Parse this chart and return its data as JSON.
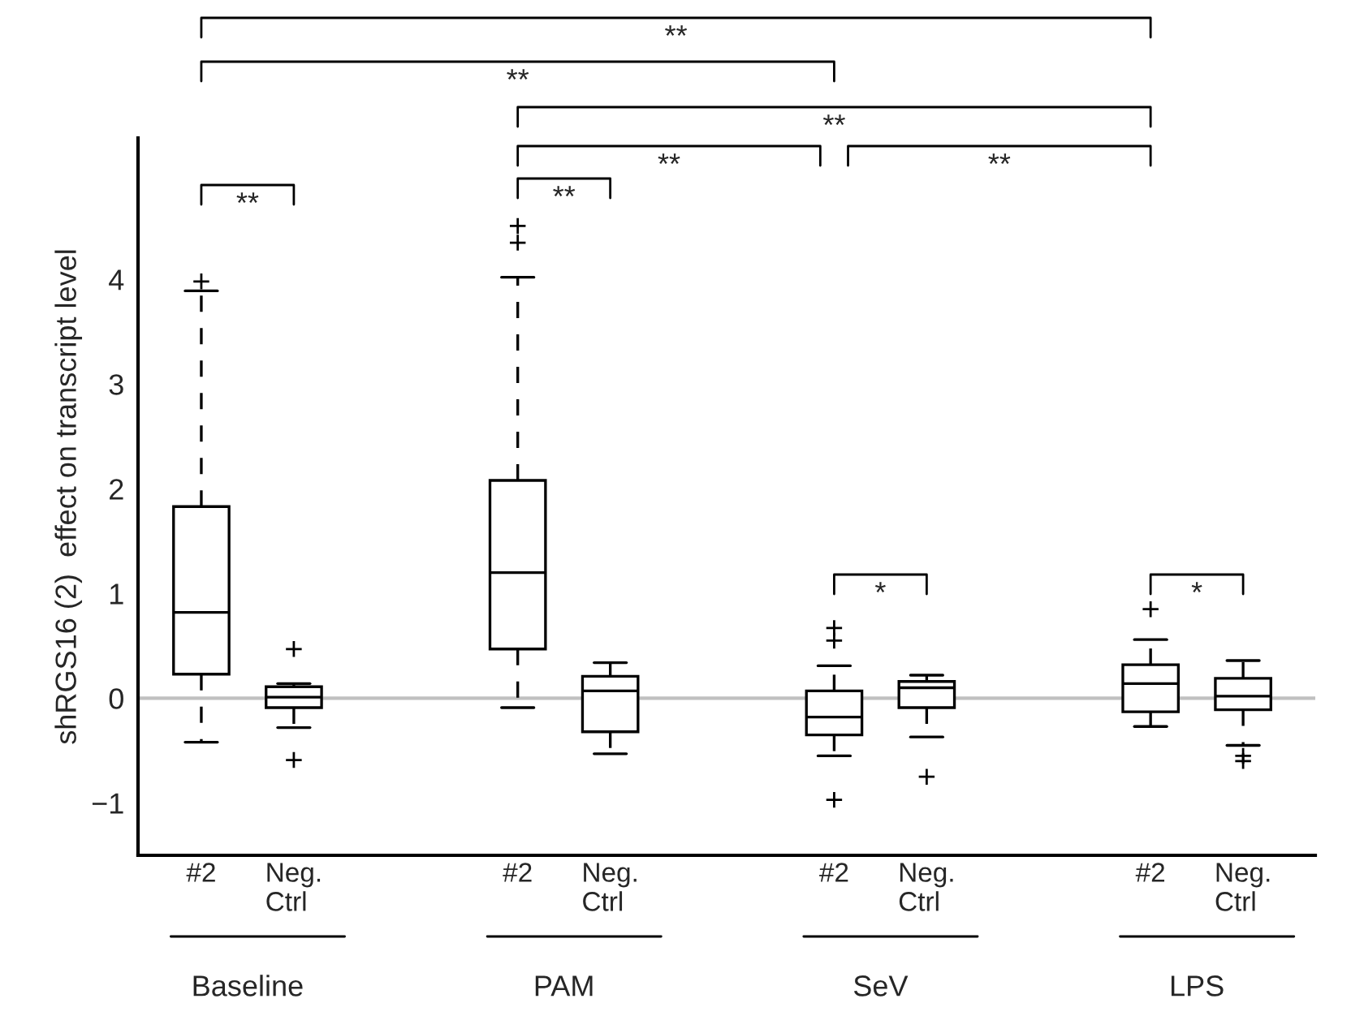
{
  "chart_data": {
    "type": "box",
    "categories": [
      "#2",
      "Neg.\nCtrl",
      "#2",
      "Neg.\nCtrl",
      "#2",
      "Neg.\nCtrl",
      "#2",
      "Neg.\nCtrl"
    ],
    "boxes": [
      {
        "low": -0.42,
        "q1": 0.23,
        "median": 0.82,
        "q3": 1.83,
        "high": 3.89,
        "outliers": [
          3.98
        ]
      },
      {
        "low": -0.28,
        "q1": -0.09,
        "median": 0.01,
        "q3": 0.11,
        "high": 0.14,
        "outliers": [
          0.47,
          -0.59
        ]
      },
      {
        "low": -0.09,
        "q1": 0.47,
        "median": 1.2,
        "q3": 2.08,
        "high": 4.02,
        "outliers": [
          4.51,
          4.35
        ]
      },
      {
        "low": -0.53,
        "q1": -0.32,
        "median": 0.07,
        "q3": 0.21,
        "high": 0.34
      },
      {
        "low": -0.55,
        "q1": -0.35,
        "median": -0.18,
        "q3": 0.07,
        "high": 0.31,
        "outliers": [
          0.67,
          0.55,
          -0.97
        ]
      },
      {
        "low": -0.37,
        "q1": -0.09,
        "median": 0.1,
        "q3": 0.16,
        "high": 0.22,
        "outliers": [
          -0.75
        ]
      },
      {
        "low": -0.27,
        "q1": -0.13,
        "median": 0.14,
        "q3": 0.32,
        "high": 0.56,
        "outliers": [
          0.85
        ]
      },
      {
        "low": -0.45,
        "q1": -0.11,
        "median": 0.02,
        "q3": 0.19,
        "high": 0.36,
        "outliers": [
          -0.55,
          -0.6
        ]
      }
    ],
    "ylabel": "shRGS16 (2)  effect on transcript level",
    "ylim": [
      -1.5,
      5.35
    ],
    "yticks": [
      {
        "value": -1,
        "label": "−1"
      },
      0,
      1,
      2,
      3,
      4
    ],
    "ref_lines": [
      {
        "axis": "y",
        "value": 0,
        "color": "#c0c0c0"
      }
    ],
    "annotations": [
      "Baseline",
      "PAM",
      "SeV",
      "LPS",
      "**",
      "**",
      "*",
      "*",
      "**",
      "**",
      "**",
      "**",
      "**"
    ],
    "grid": false,
    "legend": false
  }
}
